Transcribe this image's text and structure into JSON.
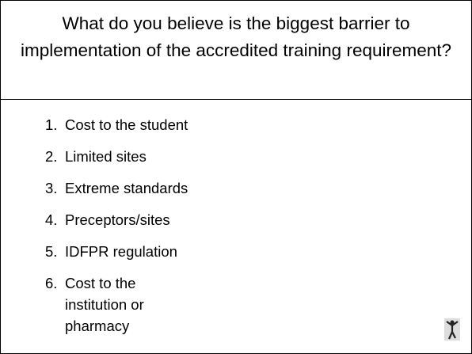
{
  "slide": {
    "title": "What do you believe is the biggest barrier to implementation of the accredited training requirement?",
    "items": [
      {
        "number": "1.",
        "text": "Cost to the student"
      },
      {
        "number": "2.",
        "text": "Limited sites"
      },
      {
        "number": "3.",
        "text": "Extreme standards"
      },
      {
        "number": "4.",
        "text": "Preceptors/sites"
      },
      {
        "number": "5.",
        "text": "IDFPR regulation"
      },
      {
        "number": "6.",
        "text": "Cost to the institution or pharmacy"
      }
    ]
  }
}
